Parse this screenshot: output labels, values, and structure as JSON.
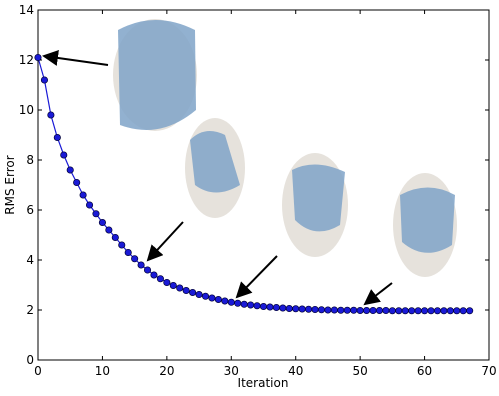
{
  "chart_data": {
    "type": "line",
    "x_label": "Iteration",
    "y_label": "RMS Error",
    "xlim": [
      0,
      70
    ],
    "ylim": [
      0,
      14
    ],
    "xticks": [
      0,
      10,
      20,
      30,
      40,
      50,
      60,
      70
    ],
    "yticks": [
      0,
      2,
      4,
      6,
      8,
      10,
      12,
      14
    ],
    "series": [
      {
        "name": "RMS Error",
        "color": "#1a1ad6",
        "x": [
          0,
          1,
          2,
          3,
          4,
          5,
          6,
          7,
          8,
          9,
          10,
          11,
          12,
          13,
          14,
          15,
          16,
          17,
          18,
          19,
          20,
          21,
          22,
          23,
          24,
          25,
          26,
          27,
          28,
          29,
          30,
          31,
          32,
          33,
          34,
          35,
          36,
          37,
          38,
          39,
          40,
          41,
          42,
          43,
          44,
          45,
          46,
          47,
          48,
          49,
          50,
          51,
          52,
          53,
          54,
          55,
          56,
          57,
          58,
          59,
          60,
          61,
          62,
          63,
          64,
          65,
          66,
          67
        ],
        "values": [
          12.1,
          11.2,
          9.8,
          8.9,
          8.2,
          7.6,
          7.1,
          6.6,
          6.2,
          5.85,
          5.5,
          5.2,
          4.9,
          4.6,
          4.3,
          4.05,
          3.8,
          3.6,
          3.4,
          3.25,
          3.1,
          2.98,
          2.88,
          2.78,
          2.7,
          2.62,
          2.55,
          2.48,
          2.42,
          2.36,
          2.31,
          2.27,
          2.23,
          2.2,
          2.17,
          2.14,
          2.12,
          2.1,
          2.08,
          2.06,
          2.05,
          2.04,
          2.03,
          2.02,
          2.01,
          2.0,
          2.0,
          1.99,
          1.99,
          1.99,
          1.98,
          1.98,
          1.98,
          1.98,
          1.98,
          1.97,
          1.97,
          1.97,
          1.97,
          1.97,
          1.97,
          1.97,
          1.97,
          1.97,
          1.97,
          1.97,
          1.97,
          1.97
        ]
      }
    ]
  }
}
